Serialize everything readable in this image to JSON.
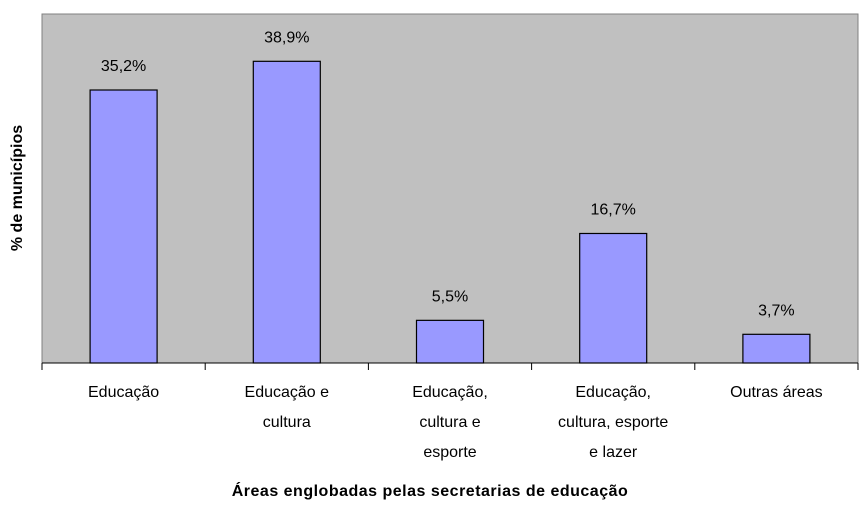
{
  "chart_data": {
    "type": "bar",
    "x_label": "Áreas englobadas pelas secretarias de educação",
    "y_label": "% de municípios",
    "categories": [
      "Educação",
      "Educação e\ncultura",
      "Educação,\ncultura e\nesporte",
      "Educação,\ncultura, esporte\ne lazer",
      "Outras áreas"
    ],
    "values": [
      35.2,
      38.9,
      5.5,
      16.7,
      3.7
    ],
    "value_labels": [
      "35,2%",
      "38,9%",
      "5,5%",
      "16,7%",
      "3,7%"
    ],
    "color": "#9999ff",
    "ylim": [
      0,
      45
    ]
  }
}
